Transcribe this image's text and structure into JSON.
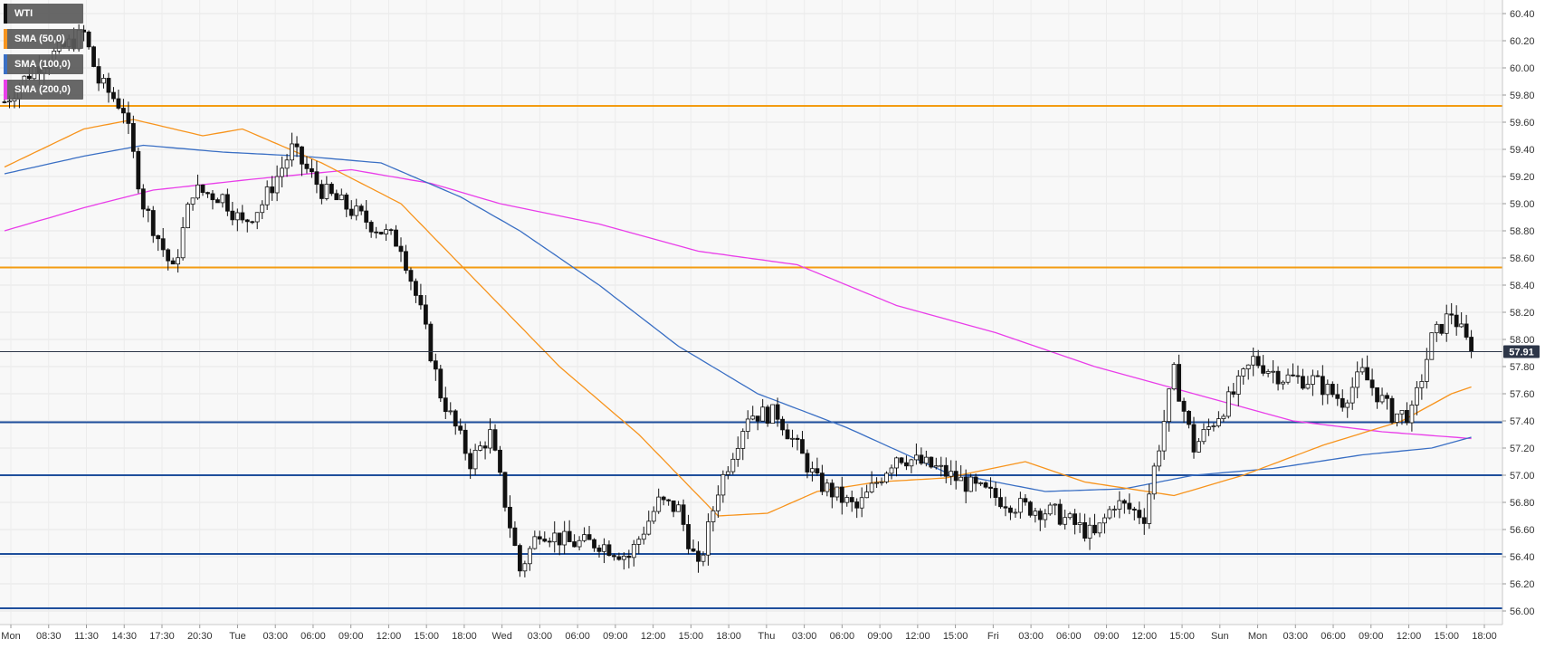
{
  "chart_data": {
    "type": "candlestick",
    "symbol": "WTI",
    "legend": [
      {
        "label": "WTI",
        "color": "#111111"
      },
      {
        "label": "SMA (50,0)",
        "color": "#f7941d"
      },
      {
        "label": "SMA (100,0)",
        "color": "#3a6fc4"
      },
      {
        "label": "SMA (200,0)",
        "color": "#e93ee9"
      }
    ],
    "y_axis": {
      "range": [
        55.9,
        60.5
      ],
      "ticks": [
        "60.40",
        "60.20",
        "60.00",
        "59.80",
        "59.60",
        "59.40",
        "59.20",
        "59.00",
        "58.80",
        "58.60",
        "58.40",
        "58.20",
        "58.00",
        "57.80",
        "57.60",
        "57.40",
        "57.20",
        "57.00",
        "56.80",
        "56.60",
        "56.40",
        "56.20",
        "56.00"
      ]
    },
    "x_axis": {
      "ticks": [
        "Mon",
        "08:30",
        "11:30",
        "14:30",
        "17:30",
        "20:30",
        "Tue",
        "03:00",
        "06:00",
        "09:00",
        "12:00",
        "15:00",
        "18:00",
        "Wed",
        "03:00",
        "06:00",
        "09:00",
        "12:00",
        "15:00",
        "18:00",
        "Thu",
        "03:00",
        "06:00",
        "09:00",
        "12:00",
        "15:00",
        "Fri",
        "03:00",
        "06:00",
        "09:00",
        "12:00",
        "15:00",
        "Sun",
        "Mon",
        "03:00",
        "06:00",
        "09:00",
        "12:00",
        "15:00",
        "18:00"
      ],
      "bars_per_hour": 2
    },
    "last_price": "57.91",
    "resistance_levels": [
      59.72,
      58.53
    ],
    "support_levels": [
      57.39,
      57.0,
      56.42,
      56.02
    ],
    "price_path": [
      [
        0,
        59.75
      ],
      [
        6,
        60.0
      ],
      [
        12,
        60.15
      ],
      [
        16,
        60.25
      ],
      [
        19,
        59.9
      ],
      [
        24,
        59.7
      ],
      [
        28,
        59.0
      ],
      [
        34,
        58.5
      ],
      [
        38,
        59.1
      ],
      [
        44,
        59.05
      ],
      [
        48,
        58.85
      ],
      [
        52,
        59.0
      ],
      [
        58,
        59.4
      ],
      [
        64,
        59.1
      ],
      [
        72,
        58.9
      ],
      [
        80,
        58.7
      ],
      [
        84,
        58.2
      ],
      [
        88,
        57.6
      ],
      [
        94,
        57.1
      ],
      [
        98,
        57.3
      ],
      [
        104,
        56.3
      ],
      [
        108,
        56.6
      ],
      [
        114,
        56.5
      ],
      [
        120,
        56.5
      ],
      [
        126,
        56.4
      ],
      [
        132,
        56.8
      ],
      [
        136,
        56.75
      ],
      [
        140,
        56.3
      ],
      [
        144,
        56.9
      ],
      [
        150,
        57.45
      ],
      [
        156,
        57.45
      ],
      [
        164,
        56.95
      ],
      [
        172,
        56.75
      ],
      [
        180,
        57.15
      ],
      [
        188,
        57.05
      ],
      [
        196,
        56.9
      ],
      [
        204,
        56.78
      ],
      [
        212,
        56.72
      ],
      [
        220,
        56.55
      ],
      [
        224,
        56.8
      ],
      [
        230,
        56.7
      ],
      [
        236,
        57.75
      ],
      [
        240,
        57.2
      ],
      [
        248,
        57.6
      ],
      [
        252,
        57.85
      ],
      [
        258,
        57.72
      ],
      [
        264,
        57.7
      ],
      [
        270,
        57.55
      ],
      [
        274,
        57.75
      ],
      [
        280,
        57.45
      ],
      [
        284,
        57.45
      ],
      [
        288,
        58.0
      ],
      [
        292,
        58.2
      ],
      [
        296,
        57.91
      ]
    ],
    "sma": {
      "sma50": [
        [
          0,
          59.27
        ],
        [
          16,
          59.55
        ],
        [
          26,
          59.62
        ],
        [
          40,
          59.5
        ],
        [
          48,
          59.55
        ],
        [
          64,
          59.3
        ],
        [
          80,
          59.0
        ],
        [
          96,
          58.4
        ],
        [
          112,
          57.8
        ],
        [
          128,
          57.3
        ],
        [
          136,
          57.0
        ],
        [
          144,
          56.7
        ],
        [
          154,
          56.72
        ],
        [
          164,
          56.88
        ],
        [
          176,
          56.95
        ],
        [
          190,
          56.98
        ],
        [
          206,
          57.1
        ],
        [
          218,
          56.95
        ],
        [
          236,
          56.85
        ],
        [
          250,
          57.0
        ],
        [
          266,
          57.22
        ],
        [
          282,
          57.4
        ],
        [
          292,
          57.6
        ],
        [
          296,
          57.65
        ]
      ],
      "sma100": [
        [
          0,
          59.22
        ],
        [
          16,
          59.35
        ],
        [
          28,
          59.43
        ],
        [
          44,
          59.38
        ],
        [
          60,
          59.35
        ],
        [
          76,
          59.3
        ],
        [
          92,
          59.05
        ],
        [
          104,
          58.8
        ],
        [
          120,
          58.4
        ],
        [
          136,
          57.95
        ],
        [
          152,
          57.6
        ],
        [
          170,
          57.35
        ],
        [
          190,
          57.02
        ],
        [
          210,
          56.88
        ],
        [
          226,
          56.9
        ],
        [
          240,
          57.0
        ],
        [
          256,
          57.05
        ],
        [
          274,
          57.15
        ],
        [
          288,
          57.2
        ],
        [
          296,
          57.28
        ]
      ],
      "sma200": [
        [
          0,
          58.8
        ],
        [
          16,
          58.97
        ],
        [
          30,
          59.1
        ],
        [
          50,
          59.18
        ],
        [
          70,
          59.25
        ],
        [
          86,
          59.15
        ],
        [
          100,
          59.0
        ],
        [
          120,
          58.85
        ],
        [
          140,
          58.65
        ],
        [
          160,
          58.55
        ],
        [
          180,
          58.25
        ],
        [
          200,
          58.05
        ],
        [
          220,
          57.8
        ],
        [
          240,
          57.6
        ],
        [
          260,
          57.4
        ],
        [
          278,
          57.32
        ],
        [
          296,
          57.27
        ]
      ]
    }
  }
}
